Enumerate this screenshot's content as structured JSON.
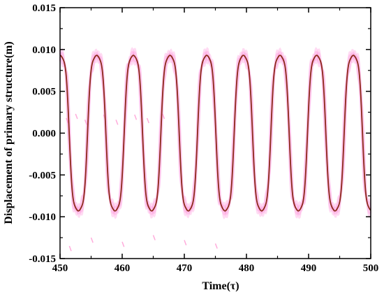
{
  "chart_data": {
    "type": "line",
    "title": "",
    "xlabel": "Time(τ)",
    "ylabel": "Displacement of primary structure(m)",
    "xlim": [
      450,
      500
    ],
    "ylim": [
      -0.015,
      0.015
    ],
    "x_ticks": [
      450,
      460,
      470,
      480,
      490,
      500
    ],
    "x_tick_labels": [
      "450",
      "460",
      "470",
      "480",
      "490",
      "500"
    ],
    "y_ticks": [
      -0.015,
      -0.01,
      -0.005,
      0.0,
      0.005,
      0.01,
      0.015
    ],
    "y_tick_labels": [
      "-0.015",
      "-0.010",
      "-0.005",
      "0.000",
      "0.005",
      "0.010",
      "0.015"
    ],
    "grid": false,
    "legend": "none",
    "series": [
      {
        "color": "#ff99dd",
        "style": "dense-oscillation-band",
        "x": [
          450.0,
          451.0,
          452.0,
          452.6,
          453.5,
          455.0,
          456.0,
          456.3,
          457.5,
          459.0,
          460.0,
          460.5,
          461.5,
          463.0,
          464.0,
          464.6,
          466.0,
          467.5,
          468.5,
          469.2,
          470.5,
          472.0,
          473.0,
          473.6,
          475.0,
          476.5,
          477.5,
          478.2,
          479.5,
          481.0,
          482.0,
          482.6,
          484.0,
          485.5,
          486.5,
          487.2,
          488.5,
          490.0,
          491.0,
          491.6,
          493.0,
          494.5,
          495.5,
          496.2,
          497.5,
          499.0,
          500.0
        ],
        "y": [
          0.0093,
          0.002,
          -0.0085,
          -0.0093,
          -0.0088,
          -0.001,
          0.0088,
          0.0093,
          0.0089,
          0.001,
          -0.0088,
          -0.0093,
          -0.0089,
          0.0,
          0.0089,
          0.0093,
          0.0089,
          0.0,
          -0.0089,
          -0.0093,
          -0.0089,
          0.0,
          0.0089,
          0.0093,
          0.0089,
          0.0,
          -0.0089,
          -0.0093,
          -0.0089,
          0.0,
          0.0089,
          0.0093,
          0.0089,
          0.0,
          -0.0089,
          -0.0093,
          -0.0089,
          0.0,
          0.0089,
          0.0093,
          0.0089,
          0.0,
          -0.0089,
          -0.0093,
          -0.0089,
          0.0,
          0.0092
        ]
      },
      {
        "color": "#8b2a1a",
        "style": "line",
        "period": 5.9,
        "amplitude_peak": 0.0095,
        "amplitude_shoulder": 0.0088,
        "x": [
          450.0,
          451.5,
          452.3,
          452.9,
          453.8,
          455.2,
          456.0,
          456.5,
          457.2,
          458.5,
          459.5,
          460.0,
          460.7,
          462.2,
          463.5,
          464.2,
          465.0,
          466.2,
          467.6,
          468.5,
          469.3,
          470.3,
          471.5,
          473.2,
          474.0,
          474.9,
          476.0,
          477.6,
          479.0,
          479.8,
          480.7,
          481.9,
          483.3,
          484.5,
          485.3,
          486.2,
          487.5,
          489.1,
          490.2,
          491.0,
          491.9,
          493.2,
          494.9,
          496.0,
          496.8,
          497.7,
          499.0,
          500.0
        ],
        "y": [
          0.0093,
          -0.004,
          -0.0089,
          -0.0093,
          -0.0088,
          0.003,
          0.0089,
          0.0093,
          0.009,
          -0.004,
          -0.0089,
          -0.0093,
          -0.0088,
          0.003,
          0.0089,
          0.0093,
          0.0089,
          -0.004,
          -0.0089,
          -0.0093,
          -0.0088,
          0.003,
          0.0089,
          0.0093,
          0.0089,
          -0.004,
          -0.0089,
          -0.0093,
          -0.0088,
          0.003,
          0.0089,
          0.0093,
          0.0089,
          -0.004,
          -0.0089,
          -0.0093,
          -0.0088,
          0.003,
          0.0089,
          0.0093,
          0.0089,
          -0.004,
          -0.0089,
          -0.0093,
          -0.0088,
          0.003,
          0.0089,
          0.0093
        ]
      }
    ]
  }
}
